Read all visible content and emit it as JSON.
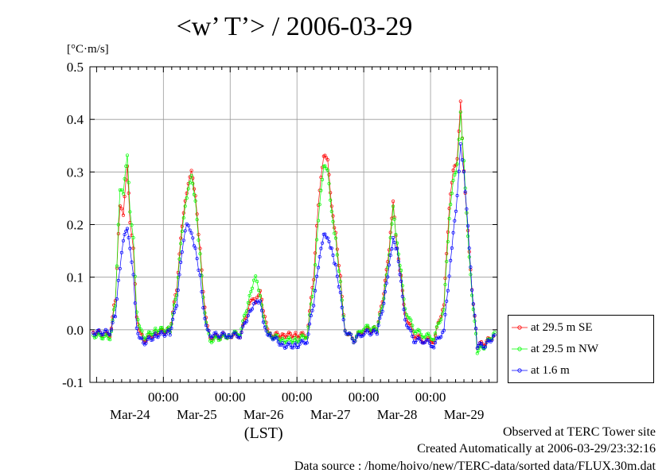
{
  "title": "<w’ T’> / 2006-03-29",
  "unit_label": "[°C·m/s]",
  "xlabel": "(LST)",
  "footer": {
    "line1": "Observed at TERC Tower site",
    "line2": "Created Automatically at 2006-03-29/23:32:16",
    "line3": "Data source : /home/hoivo/new/TERC-data/sorted  data/FLUX.30m.dat"
  },
  "chart_data": {
    "type": "line",
    "title": "<w’ T’> / 2006-03-29",
    "xlabel": "(LST)",
    "ylabel": "[°C·m/s]",
    "xlim_days": [
      -0.1,
      6.0
    ],
    "ylim": [
      -0.1,
      0.5
    ],
    "yticks": [
      "0.5",
      "0.4",
      "0.3",
      "0.2",
      "0.1",
      "0.0",
      "-0.1"
    ],
    "ytick_values": [
      0.5,
      0.4,
      0.3,
      0.2,
      0.1,
      0.0,
      -0.1
    ],
    "xticks_time": [
      "00:00",
      "00:00",
      "00:00",
      "00:00",
      "00:00"
    ],
    "xticks_time_values": [
      1,
      2,
      3,
      4,
      5
    ],
    "xticks_date": [
      "Mar-24",
      "Mar-25",
      "Mar-26",
      "Mar-27",
      "Mar-28",
      "Mar-29"
    ],
    "xticks_date_values": [
      0.5,
      1.5,
      2.5,
      3.5,
      4.5,
      5.5
    ],
    "grid": true,
    "legend_position": "right",
    "series": [
      {
        "name": "at 29.5 m SE",
        "color": "#ff0000",
        "keypoints": [
          [
            -0.05,
            -0.005
          ],
          [
            0.2,
            -0.01
          ],
          [
            0.28,
            0.06
          ],
          [
            0.35,
            0.24
          ],
          [
            0.4,
            0.22
          ],
          [
            0.46,
            0.31
          ],
          [
            0.5,
            0.2
          ],
          [
            0.55,
            0.15
          ],
          [
            0.6,
            0.02
          ],
          [
            0.7,
            -0.02
          ],
          [
            0.9,
            -0.005
          ],
          [
            1.1,
            0.0
          ],
          [
            1.2,
            0.08
          ],
          [
            1.28,
            0.2
          ],
          [
            1.35,
            0.26
          ],
          [
            1.42,
            0.3
          ],
          [
            1.48,
            0.25
          ],
          [
            1.55,
            0.15
          ],
          [
            1.62,
            0.04
          ],
          [
            1.7,
            -0.015
          ],
          [
            2.0,
            -0.01
          ],
          [
            2.15,
            -0.01
          ],
          [
            2.25,
            0.03
          ],
          [
            2.33,
            0.06
          ],
          [
            2.38,
            0.05
          ],
          [
            2.45,
            0.07
          ],
          [
            2.52,
            0.02
          ],
          [
            2.6,
            -0.01
          ],
          [
            2.8,
            -0.01
          ],
          [
            3.0,
            -0.01
          ],
          [
            3.15,
            -0.01
          ],
          [
            3.25,
            0.1
          ],
          [
            3.32,
            0.24
          ],
          [
            3.4,
            0.33
          ],
          [
            3.46,
            0.32
          ],
          [
            3.52,
            0.23
          ],
          [
            3.58,
            0.18
          ],
          [
            3.65,
            0.1
          ],
          [
            3.72,
            0.0
          ],
          [
            3.85,
            -0.02
          ],
          [
            4.0,
            0.0
          ],
          [
            4.2,
            0.0
          ],
          [
            4.3,
            0.07
          ],
          [
            4.38,
            0.15
          ],
          [
            4.44,
            0.24
          ],
          [
            4.5,
            0.15
          ],
          [
            4.56,
            0.1
          ],
          [
            4.62,
            0.03
          ],
          [
            4.75,
            -0.01
          ],
          [
            4.9,
            -0.02
          ],
          [
            5.05,
            -0.02
          ],
          [
            5.2,
            0.05
          ],
          [
            5.28,
            0.23
          ],
          [
            5.34,
            0.3
          ],
          [
            5.4,
            0.32
          ],
          [
            5.45,
            0.43
          ],
          [
            5.5,
            0.3
          ],
          [
            5.56,
            0.19
          ],
          [
            5.62,
            0.08
          ],
          [
            5.7,
            -0.03
          ],
          [
            5.82,
            -0.025
          ],
          [
            5.96,
            -0.01
          ]
        ]
      },
      {
        "name": "at 29.5 m NW",
        "color": "#00ff00",
        "keypoints": [
          [
            -0.05,
            -0.01
          ],
          [
            0.2,
            -0.015
          ],
          [
            0.28,
            0.05
          ],
          [
            0.35,
            0.27
          ],
          [
            0.4,
            0.26
          ],
          [
            0.46,
            0.33
          ],
          [
            0.5,
            0.22
          ],
          [
            0.55,
            0.17
          ],
          [
            0.6,
            0.03
          ],
          [
            0.7,
            -0.015
          ],
          [
            0.9,
            0.0
          ],
          [
            1.1,
            0.0
          ],
          [
            1.2,
            0.07
          ],
          [
            1.28,
            0.19
          ],
          [
            1.35,
            0.25
          ],
          [
            1.42,
            0.29
          ],
          [
            1.48,
            0.24
          ],
          [
            1.55,
            0.14
          ],
          [
            1.62,
            0.03
          ],
          [
            1.7,
            -0.02
          ],
          [
            2.0,
            -0.01
          ],
          [
            2.15,
            -0.005
          ],
          [
            2.25,
            0.04
          ],
          [
            2.33,
            0.08
          ],
          [
            2.38,
            0.1
          ],
          [
            2.45,
            0.06
          ],
          [
            2.52,
            0.01
          ],
          [
            2.6,
            -0.01
          ],
          [
            2.8,
            -0.02
          ],
          [
            3.0,
            -0.02
          ],
          [
            3.15,
            -0.01
          ],
          [
            3.25,
            0.08
          ],
          [
            3.32,
            0.21
          ],
          [
            3.4,
            0.31
          ],
          [
            3.46,
            0.3
          ],
          [
            3.52,
            0.22
          ],
          [
            3.58,
            0.17
          ],
          [
            3.65,
            0.09
          ],
          [
            3.72,
            0.0
          ],
          [
            3.85,
            -0.02
          ],
          [
            4.0,
            0.005
          ],
          [
            4.2,
            0.0
          ],
          [
            4.3,
            0.06
          ],
          [
            4.38,
            0.14
          ],
          [
            4.44,
            0.23
          ],
          [
            4.5,
            0.16
          ],
          [
            4.56,
            0.11
          ],
          [
            4.62,
            0.04
          ],
          [
            4.75,
            0.0
          ],
          [
            4.9,
            -0.01
          ],
          [
            5.05,
            -0.015
          ],
          [
            5.2,
            0.04
          ],
          [
            5.28,
            0.21
          ],
          [
            5.34,
            0.28
          ],
          [
            5.4,
            0.31
          ],
          [
            5.45,
            0.41
          ],
          [
            5.5,
            0.32
          ],
          [
            5.56,
            0.18
          ],
          [
            5.62,
            0.07
          ],
          [
            5.7,
            -0.04
          ],
          [
            5.82,
            -0.03
          ],
          [
            5.96,
            -0.005
          ]
        ]
      },
      {
        "name": "at 1.6 m",
        "color": "#0000ff",
        "keypoints": [
          [
            -0.05,
            -0.005
          ],
          [
            0.2,
            -0.005
          ],
          [
            0.28,
            0.03
          ],
          [
            0.35,
            0.12
          ],
          [
            0.4,
            0.17
          ],
          [
            0.46,
            0.19
          ],
          [
            0.5,
            0.15
          ],
          [
            0.55,
            0.1
          ],
          [
            0.6,
            0.0
          ],
          [
            0.7,
            -0.025
          ],
          [
            0.9,
            -0.01
          ],
          [
            1.1,
            -0.005
          ],
          [
            1.2,
            0.05
          ],
          [
            1.28,
            0.15
          ],
          [
            1.35,
            0.2
          ],
          [
            1.42,
            0.18
          ],
          [
            1.48,
            0.15
          ],
          [
            1.55,
            0.1
          ],
          [
            1.62,
            0.02
          ],
          [
            1.7,
            -0.01
          ],
          [
            2.0,
            -0.01
          ],
          [
            2.15,
            -0.01
          ],
          [
            2.25,
            0.02
          ],
          [
            2.33,
            0.04
          ],
          [
            2.38,
            0.05
          ],
          [
            2.45,
            0.05
          ],
          [
            2.52,
            0.0
          ],
          [
            2.6,
            -0.01
          ],
          [
            2.8,
            -0.03
          ],
          [
            3.0,
            -0.03
          ],
          [
            3.15,
            -0.02
          ],
          [
            3.25,
            0.05
          ],
          [
            3.32,
            0.12
          ],
          [
            3.4,
            0.18
          ],
          [
            3.46,
            0.17
          ],
          [
            3.52,
            0.15
          ],
          [
            3.58,
            0.12
          ],
          [
            3.65,
            0.07
          ],
          [
            3.72,
            0.0
          ],
          [
            3.85,
            -0.02
          ],
          [
            4.0,
            -0.005
          ],
          [
            4.2,
            -0.005
          ],
          [
            4.3,
            0.05
          ],
          [
            4.38,
            0.12
          ],
          [
            4.44,
            0.17
          ],
          [
            4.5,
            0.15
          ],
          [
            4.56,
            0.09
          ],
          [
            4.62,
            0.02
          ],
          [
            4.75,
            -0.02
          ],
          [
            4.9,
            -0.02
          ],
          [
            5.05,
            -0.03
          ],
          [
            5.2,
            0.0
          ],
          [
            5.28,
            0.1
          ],
          [
            5.34,
            0.18
          ],
          [
            5.4,
            0.25
          ],
          [
            5.45,
            0.35
          ],
          [
            5.5,
            0.3
          ],
          [
            5.56,
            0.2
          ],
          [
            5.62,
            0.08
          ],
          [
            5.7,
            -0.03
          ],
          [
            5.82,
            -0.03
          ],
          [
            5.96,
            -0.01
          ]
        ]
      }
    ]
  }
}
